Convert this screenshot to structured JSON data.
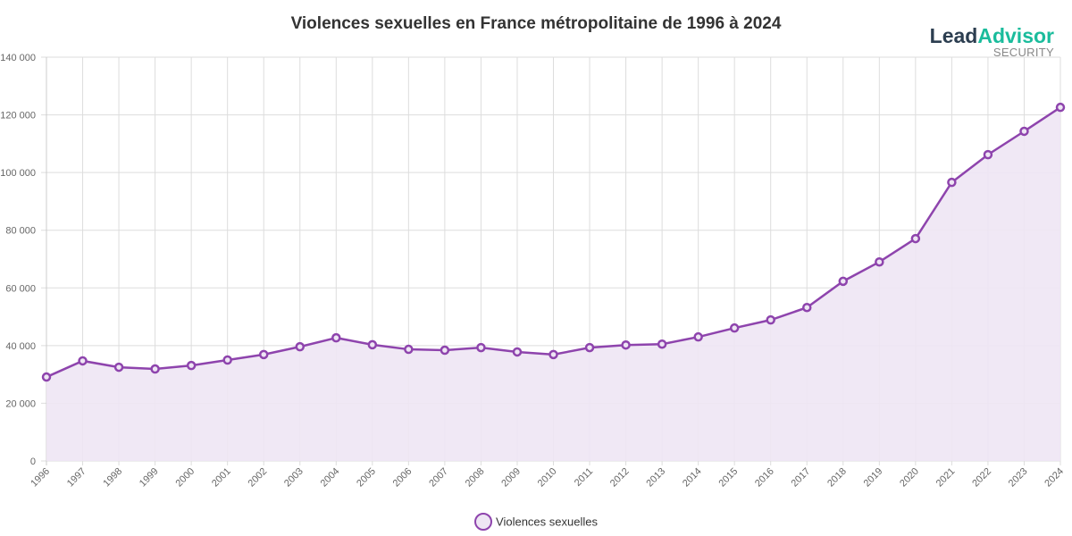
{
  "chart_data": {
    "type": "area",
    "title": "Violences sexuelles en France métropolitaine de 1996 à 2024",
    "categories": [
      "1996",
      "1997",
      "1998",
      "1999",
      "2000",
      "2001",
      "2002",
      "2003",
      "2004",
      "2005",
      "2006",
      "2007",
      "2008",
      "2009",
      "2010",
      "2011",
      "2012",
      "2013",
      "2014",
      "2015",
      "2016",
      "2017",
      "2018",
      "2019",
      "2020",
      "2021",
      "2022",
      "2023",
      "2024"
    ],
    "series": [
      {
        "name": "Violences sexuelles",
        "values": [
          29100,
          34700,
          32500,
          31900,
          33100,
          35000,
          36900,
          39600,
          42700,
          40300,
          38700,
          38400,
          39300,
          37800,
          36900,
          39300,
          40200,
          40500,
          43000,
          46100,
          48900,
          53200,
          62300,
          69000,
          77100,
          96600,
          106200,
          114300,
          122600
        ]
      }
    ],
    "ylim": [
      0,
      140000
    ],
    "yticks": [
      "0",
      "20 000",
      "40 000",
      "60 000",
      "80 000",
      "100 000",
      "120 000",
      "140 000"
    ],
    "grid": true,
    "legend_position": "bottom",
    "colors": {
      "line": "#8e44ad",
      "fill": "#eee6f4",
      "grid": "#dddddd"
    }
  },
  "logo": {
    "lead": "Lead",
    "advisor": "Advisor",
    "sub": "SECURITY"
  }
}
